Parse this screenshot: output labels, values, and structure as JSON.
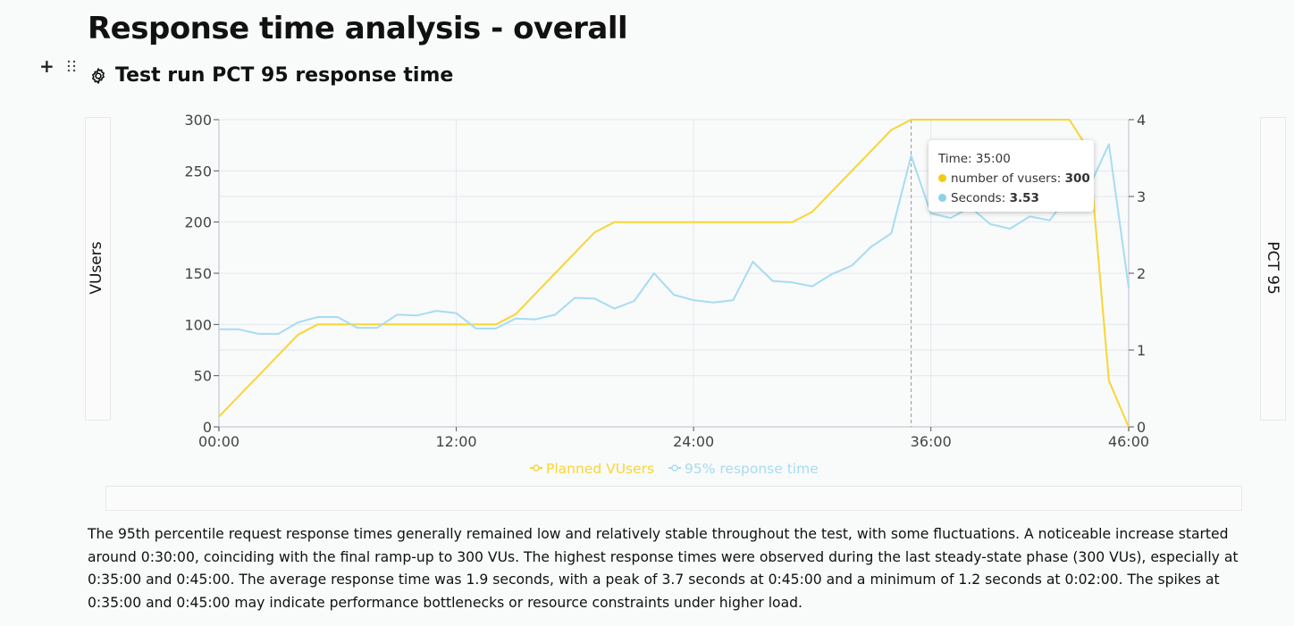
{
  "page": {
    "title": "Response time analysis - overall",
    "section_title": "Test run PCT 95 response time",
    "description": "The 95th percentile request response times generally remained low and relatively stable throughout the test, with some fluctuations. A noticeable increase started around 0:30:00, coinciding with the final ramp-up to 300 VUs. The highest response times were observed during the last steady-state phase (300 VUs), especially at 0:35:00 and 0:45:00. The average response time was 1.9 seconds, with a peak of 3.7 seconds at 0:45:00 and a minimum of 1.2 seconds at 0:02:00. The spikes at 0:35:00 and 0:45:00 may indicate performance bottlenecks or resource constraints under higher load."
  },
  "icons": {
    "add": "plus-icon",
    "drag": "drag-handle-icon",
    "settings": "gear-icon"
  },
  "tooltip": {
    "time_label": "Time: 35:00",
    "series1_label": "number of vusers: ",
    "series1_value": "300",
    "series2_label": "Seconds: ",
    "series2_value": "3.53"
  },
  "chart_data": {
    "type": "line",
    "ylabel_left": "VUsers",
    "ylabel_right": "PCT 95",
    "ylim_left": [
      0,
      300
    ],
    "ylim_right": [
      0,
      4
    ],
    "xlim": [
      0,
      46
    ],
    "x_ticks": [
      "00:00",
      "12:00",
      "24:00",
      "36:00",
      "46:00"
    ],
    "y_ticks_left": [
      "0",
      "50",
      "100",
      "150",
      "200",
      "250",
      "300"
    ],
    "y_ticks_right": [
      "0",
      "1",
      "2",
      "3",
      "4"
    ],
    "legend": "bottom-center",
    "grid": true,
    "colors": {
      "vusers": "#f7d635",
      "response": "#a7dcf2"
    },
    "series": [
      {
        "name": "Planned VUsers",
        "axis": "left",
        "x": [
          0,
          1,
          2,
          3,
          4,
          5,
          6,
          7,
          8,
          9,
          10,
          11,
          12,
          13,
          14,
          15,
          16,
          17,
          18,
          19,
          20,
          21,
          22,
          23,
          24,
          25,
          26,
          27,
          28,
          29,
          30,
          31,
          32,
          33,
          34,
          35,
          36,
          37,
          38,
          39,
          40,
          41,
          42,
          43,
          44,
          45,
          46
        ],
        "values": [
          10,
          30,
          50,
          70,
          90,
          100,
          100,
          100,
          100,
          100,
          100,
          100,
          100,
          100,
          100,
          110,
          130,
          150,
          170,
          190,
          200,
          200,
          200,
          200,
          200,
          200,
          200,
          200,
          200,
          200,
          210,
          230,
          250,
          270,
          290,
          300,
          300,
          300,
          300,
          300,
          300,
          300,
          300,
          300,
          270,
          45,
          0
        ]
      },
      {
        "name": "95% response time",
        "axis": "right",
        "x": [
          0,
          1,
          2,
          3,
          4,
          5,
          6,
          7,
          8,
          9,
          10,
          11,
          12,
          13,
          14,
          15,
          16,
          17,
          18,
          19,
          20,
          21,
          22,
          23,
          24,
          25,
          26,
          27,
          28,
          29,
          30,
          31,
          32,
          33,
          34,
          35,
          36,
          37,
          38,
          39,
          40,
          41,
          42,
          43,
          44,
          45,
          46
        ],
        "values": [
          1.27,
          1.27,
          1.21,
          1.21,
          1.36,
          1.43,
          1.43,
          1.29,
          1.29,
          1.46,
          1.45,
          1.51,
          1.48,
          1.28,
          1.28,
          1.41,
          1.4,
          1.46,
          1.68,
          1.67,
          1.54,
          1.64,
          2.0,
          1.72,
          1.65,
          1.62,
          1.65,
          2.15,
          1.9,
          1.88,
          1.83,
          1.99,
          2.1,
          2.35,
          2.52,
          3.53,
          2.78,
          2.72,
          2.86,
          2.64,
          2.58,
          2.74,
          2.69,
          3.02,
          3.12,
          3.68,
          1.81
        ]
      }
    ],
    "highlight_x": 35
  }
}
